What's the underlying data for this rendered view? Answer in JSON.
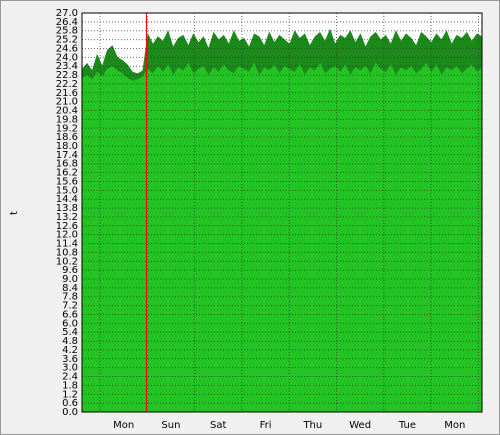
{
  "chart_data": {
    "type": "area",
    "y_label": "t",
    "x_labels": [
      "Mon",
      "Sun",
      "Sat",
      "Fri",
      "Thu",
      "Wed",
      "Tue",
      "Mon"
    ],
    "ylim": [
      0,
      27
    ],
    "yticks": [
      {
        "value": 0,
        "label": "0.0"
      },
      0.6,
      1.2,
      1.8,
      2.4,
      {
        "value": 3,
        "label": "3.0"
      },
      3.6,
      4.2,
      4.8,
      5.4,
      {
        "value": 6,
        "label": "6.0"
      },
      6.6,
      7.2,
      7.8,
      8.4,
      {
        "value": 9,
        "label": "9.0"
      },
      9.6,
      10.2,
      10.8,
      11.4,
      {
        "value": 12,
        "label": "12.0"
      },
      12.6,
      13.2,
      13.8,
      14.4,
      {
        "value": 15,
        "label": "15.0"
      },
      15.6,
      16.2,
      16.8,
      17.4,
      {
        "value": 18,
        "label": "18.0"
      },
      18.6,
      19.2,
      19.8,
      20.4,
      {
        "value": 21,
        "label": "21.0"
      },
      21.6,
      22.2,
      22.8,
      23.4,
      {
        "value": 24,
        "label": "24.0"
      },
      24.6,
      25.2,
      25.8,
      26.4,
      {
        "value": 27,
        "label": "27.0"
      }
    ],
    "grid": true,
    "series": [
      {
        "color": "#1b8a1b",
        "values": [
          23.2,
          23.6,
          23.1,
          24.2,
          23.4,
          24.5,
          24.8,
          24.0,
          23.8,
          23.5,
          23.0,
          22.9,
          23.1,
          25.6,
          24.9,
          25.4,
          25.1,
          25.8,
          24.7,
          25.3,
          25.5,
          24.8,
          25.6,
          25.0,
          25.4,
          24.6,
          25.7,
          25.2,
          25.5,
          24.9,
          25.8,
          25.1,
          25.3,
          24.7,
          25.6,
          25.4,
          24.8,
          25.7,
          25.0,
          25.5,
          25.2,
          24.9,
          25.8,
          25.3,
          25.6,
          24.8,
          25.4,
          25.7,
          25.1,
          25.9,
          24.9,
          25.5,
          25.3,
          25.8,
          25.0,
          25.6,
          24.7,
          25.4,
          25.7,
          25.2,
          25.5,
          24.9,
          25.8,
          25.1,
          25.6,
          25.3,
          24.8,
          25.7,
          25.4,
          25.0,
          25.6,
          25.2,
          25.8,
          24.9,
          25.5,
          25.3,
          25.7,
          25.1,
          25.6,
          25.4
        ]
      },
      {
        "color": "#22c322",
        "values": [
          22.6,
          22.8,
          22.5,
          23.0,
          22.7,
          23.2,
          23.4,
          23.1,
          22.9,
          22.6,
          22.4,
          22.5,
          22.7,
          23.2,
          22.9,
          23.4,
          23.0,
          23.5,
          22.8,
          23.3,
          23.1,
          23.6,
          22.9,
          23.2,
          23.4,
          22.8,
          23.3,
          23.0,
          23.5,
          23.1,
          22.9,
          23.4,
          23.2,
          23.0,
          23.6,
          22.8,
          23.3,
          23.1,
          23.5,
          22.9,
          23.4,
          23.2,
          23.0,
          23.5,
          22.8,
          23.3,
          23.1,
          23.6,
          22.9,
          23.2,
          23.4,
          23.0,
          23.5,
          22.8,
          23.3,
          23.1,
          23.4,
          22.9,
          23.6,
          23.2,
          23.0,
          23.5,
          22.8,
          23.3,
          23.1,
          23.4,
          22.9,
          23.2,
          23.6,
          23.0,
          23.5,
          22.8,
          23.3,
          23.1,
          23.4,
          22.9,
          23.2,
          23.5,
          23.0,
          23.3
        ]
      }
    ]
  }
}
